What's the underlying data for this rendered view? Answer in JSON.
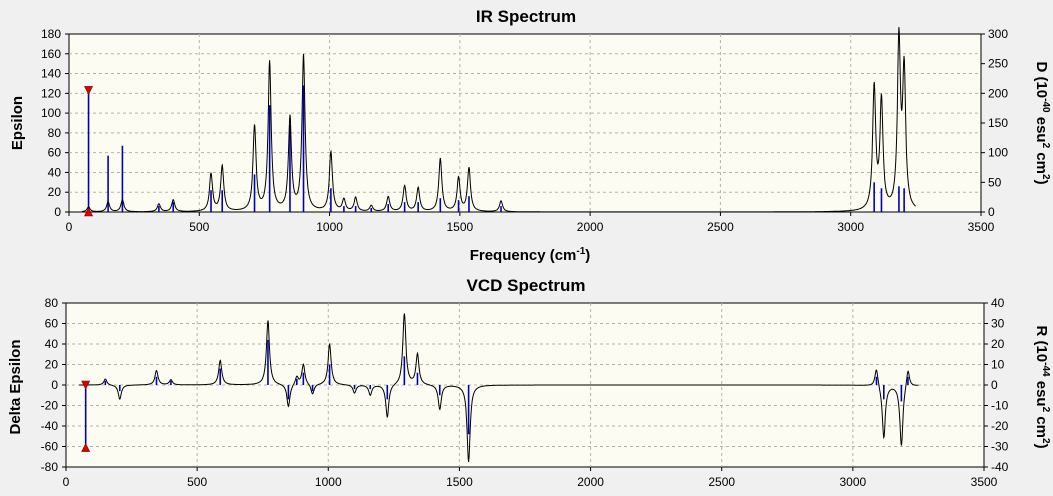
{
  "chart_data": [
    {
      "type": "line",
      "title": "IR Spectrum",
      "xlabel": "Frequency (cm-1)",
      "xlabel_parts": {
        "base": "Frequency (cm",
        "sup": "-1",
        "tail": ")"
      },
      "ylabel": "Epsilon",
      "y2label": "D (10-40 esu2 cm2)",
      "y2label_parts": [
        "D (10",
        "-40",
        " esu",
        "2",
        " cm",
        "2",
        ")"
      ],
      "xlim": [
        0,
        3500
      ],
      "ylim": [
        0,
        180
      ],
      "y2lim": [
        0,
        300
      ],
      "xticks": [
        0,
        500,
        1000,
        1500,
        2000,
        2500,
        3000,
        3500
      ],
      "yticks": [
        0,
        20,
        40,
        60,
        80,
        100,
        120,
        140,
        160,
        180
      ],
      "y2ticks": [
        0,
        50,
        100,
        150,
        200,
        250,
        300
      ],
      "grid": "dashed",
      "plot_background": "#fcfcf2",
      "curve_color": "#000000",
      "stick_color": "#0000b4",
      "marker_color": "#dd0000",
      "x_range_shown": [
        50,
        3250
      ],
      "peaks": [
        {
          "x": 75,
          "y": 5,
          "stick": 122
        },
        {
          "x": 150,
          "y": 10,
          "stick": 57
        },
        {
          "x": 205,
          "y": 12,
          "stick": 67
        },
        {
          "x": 345,
          "y": 8,
          "stick": 6
        },
        {
          "x": 400,
          "y": 12,
          "stick": 10
        },
        {
          "x": 545,
          "y": 38,
          "stick": 22
        },
        {
          "x": 588,
          "y": 46,
          "stick": 22
        },
        {
          "x": 712,
          "y": 86,
          "stick": 38
        },
        {
          "x": 770,
          "y": 151,
          "stick": 108
        },
        {
          "x": 848,
          "y": 94,
          "stick": 88
        },
        {
          "x": 900,
          "y": 158,
          "stick": 128
        },
        {
          "x": 1005,
          "y": 60,
          "stick": 24
        },
        {
          "x": 1055,
          "y": 12,
          "stick": 6
        },
        {
          "x": 1100,
          "y": 14,
          "stick": 6
        },
        {
          "x": 1160,
          "y": 6,
          "stick": 4
        },
        {
          "x": 1225,
          "y": 15,
          "stick": 8
        },
        {
          "x": 1288,
          "y": 26,
          "stick": 10
        },
        {
          "x": 1340,
          "y": 24,
          "stick": 10
        },
        {
          "x": 1425,
          "y": 54,
          "stick": 14
        },
        {
          "x": 1495,
          "y": 34,
          "stick": 12
        },
        {
          "x": 1535,
          "y": 44,
          "stick": 16
        },
        {
          "x": 1658,
          "y": 11,
          "stick": 6
        },
        {
          "x": 3090,
          "y": 124,
          "stick": 30
        },
        {
          "x": 3118,
          "y": 110,
          "stick": 24
        },
        {
          "x": 3185,
          "y": 170,
          "stick": 26
        },
        {
          "x": 3205,
          "y": 138,
          "stick": 24
        }
      ],
      "markers": [
        {
          "x": 75,
          "y": 123,
          "shape": "triangle-down"
        },
        {
          "x": 75,
          "y": 0,
          "shape": "triangle-up"
        }
      ]
    },
    {
      "type": "line",
      "title": "VCD Spectrum",
      "xlabel": "",
      "ylabel": "Delta Epsilon",
      "y2label": "R (10-44 esu2 cm2)",
      "y2label_parts": [
        "R (10",
        "-44",
        " esu",
        "2",
        " cm",
        "2",
        ")"
      ],
      "xlim": [
        0,
        3500
      ],
      "ylim": [
        -80,
        80
      ],
      "y2lim": [
        -40,
        40
      ],
      "xticks": [
        0,
        500,
        1000,
        1500,
        2000,
        2500,
        3000,
        3500
      ],
      "yticks": [
        -80,
        -60,
        -40,
        -20,
        0,
        20,
        40,
        60,
        80
      ],
      "y2ticks": [
        -40,
        -30,
        -20,
        -10,
        0,
        10,
        20,
        30,
        40
      ],
      "grid": "dashed",
      "plot_background": "#fcfcf2",
      "curve_color": "#000000",
      "stick_color": "#0000b4",
      "marker_color": "#dd0000",
      "x_range_shown": [
        50,
        3250
      ],
      "peaks": [
        {
          "x": 75,
          "y": 0,
          "stick": -61
        },
        {
          "x": 150,
          "y": 6,
          "stick": 4
        },
        {
          "x": 205,
          "y": -14,
          "stick": -6
        },
        {
          "x": 345,
          "y": 14,
          "stick": 8
        },
        {
          "x": 400,
          "y": 5,
          "stick": 4
        },
        {
          "x": 588,
          "y": 24,
          "stick": 16
        },
        {
          "x": 770,
          "y": 63,
          "stick": 44
        },
        {
          "x": 848,
          "y": -22,
          "stick": -14
        },
        {
          "x": 880,
          "y": 8,
          "stick": 6
        },
        {
          "x": 905,
          "y": 20,
          "stick": 12
        },
        {
          "x": 940,
          "y": -10,
          "stick": -6
        },
        {
          "x": 1005,
          "y": 40,
          "stick": 20
        },
        {
          "x": 1100,
          "y": -8,
          "stick": -4
        },
        {
          "x": 1160,
          "y": -10,
          "stick": -4
        },
        {
          "x": 1225,
          "y": -32,
          "stick": -14
        },
        {
          "x": 1290,
          "y": 70,
          "stick": 28
        },
        {
          "x": 1340,
          "y": 30,
          "stick": 12
        },
        {
          "x": 1425,
          "y": -24,
          "stick": -10
        },
        {
          "x": 1535,
          "y": -75,
          "stick": -48
        },
        {
          "x": 3090,
          "y": 18,
          "stick": 8
        },
        {
          "x": 3118,
          "y": -52,
          "stick": -14
        },
        {
          "x": 3185,
          "y": -60,
          "stick": -16
        },
        {
          "x": 3210,
          "y": 18,
          "stick": 8
        }
      ],
      "markers": [
        {
          "x": 75,
          "y": 0,
          "shape": "triangle-down"
        },
        {
          "x": 75,
          "y": -61,
          "shape": "triangle-up"
        }
      ]
    }
  ]
}
